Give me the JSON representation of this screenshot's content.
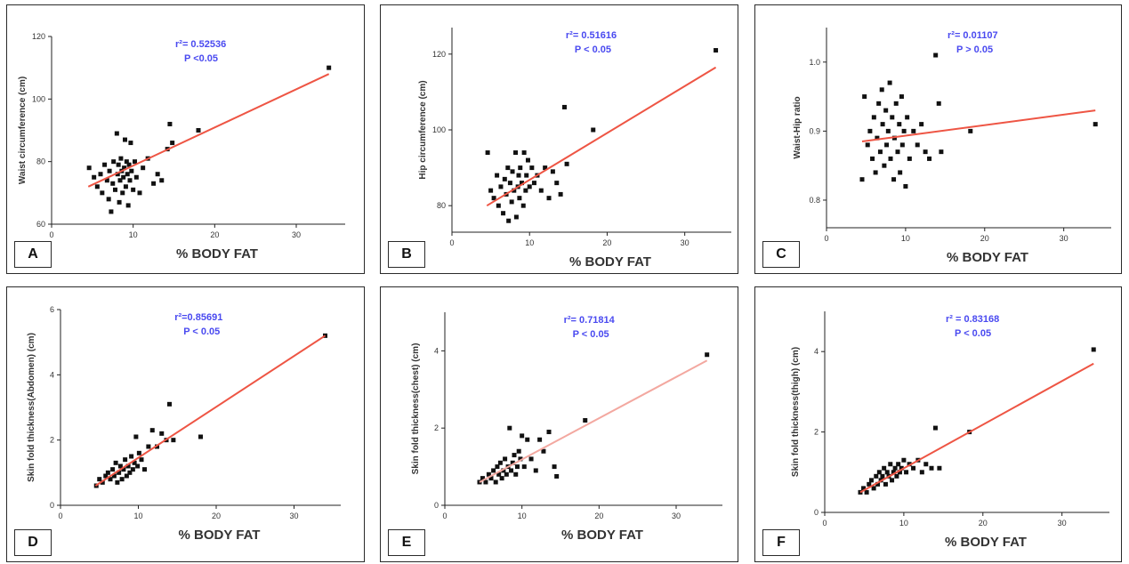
{
  "chart_data": [
    {
      "type": "scatter",
      "panel_label": "A",
      "xlabel": "% BODY FAT",
      "ylabel": "Waist circumference (cm)",
      "xlim": [
        0,
        36
      ],
      "ylim": [
        60,
        120
      ],
      "xticks": [
        "0",
        "10",
        "20",
        "30"
      ],
      "yticks": [
        "60",
        "80",
        "100",
        "120"
      ],
      "r2_label": "r²= 0.52536",
      "p_label": "P <0.05",
      "fit_line": {
        "x": [
          4.5,
          34
        ],
        "y": [
          72,
          108
        ]
      },
      "points": [
        [
          4.6,
          78
        ],
        [
          5.2,
          75
        ],
        [
          5.6,
          72
        ],
        [
          6.0,
          76
        ],
        [
          6.2,
          70
        ],
        [
          6.5,
          79
        ],
        [
          6.8,
          74
        ],
        [
          7.0,
          68
        ],
        [
          7.1,
          77
        ],
        [
          7.3,
          64
        ],
        [
          7.5,
          73
        ],
        [
          7.6,
          80
        ],
        [
          7.8,
          71
        ],
        [
          8.0,
          89
        ],
        [
          8.1,
          76
        ],
        [
          8.2,
          79
        ],
        [
          8.3,
          67
        ],
        [
          8.4,
          74
        ],
        [
          8.5,
          81
        ],
        [
          8.6,
          77
        ],
        [
          8.7,
          70
        ],
        [
          8.8,
          75
        ],
        [
          8.9,
          78
        ],
        [
          9.0,
          87
        ],
        [
          9.1,
          72
        ],
        [
          9.2,
          80
        ],
        [
          9.3,
          76
        ],
        [
          9.4,
          66
        ],
        [
          9.5,
          79
        ],
        [
          9.6,
          74
        ],
        [
          9.7,
          86
        ],
        [
          9.8,
          77
        ],
        [
          10.0,
          71
        ],
        [
          10.2,
          80
        ],
        [
          10.4,
          75
        ],
        [
          10.8,
          70
        ],
        [
          11.2,
          78
        ],
        [
          11.8,
          81
        ],
        [
          12.5,
          73
        ],
        [
          13.0,
          76
        ],
        [
          13.5,
          74
        ],
        [
          14.2,
          84
        ],
        [
          14.5,
          92
        ],
        [
          14.8,
          86
        ],
        [
          18.0,
          90
        ],
        [
          34.0,
          110
        ]
      ]
    },
    {
      "type": "scatter",
      "panel_label": "B",
      "xlabel": "% BODY FAT",
      "ylabel": "Hip circumference (cm)",
      "xlim": [
        0,
        36
      ],
      "ylim": [
        73,
        127
      ],
      "xticks": [
        "0",
        "10",
        "20",
        "30"
      ],
      "yticks": [
        "80",
        "100",
        "120"
      ],
      "r2_label": "r²= 0.51616",
      "p_label": "P < 0.05",
      "fit_line": {
        "x": [
          4.5,
          34
        ],
        "y": [
          80,
          116.5
        ]
      },
      "points": [
        [
          4.6,
          94
        ],
        [
          5.0,
          84
        ],
        [
          5.4,
          82
        ],
        [
          5.8,
          88
        ],
        [
          6.0,
          80
        ],
        [
          6.3,
          85
        ],
        [
          6.6,
          78
        ],
        [
          6.8,
          87
        ],
        [
          7.0,
          83
        ],
        [
          7.2,
          90
        ],
        [
          7.3,
          76
        ],
        [
          7.5,
          86
        ],
        [
          7.7,
          81
        ],
        [
          7.8,
          89
        ],
        [
          8.0,
          84
        ],
        [
          8.2,
          94
        ],
        [
          8.3,
          77
        ],
        [
          8.5,
          85
        ],
        [
          8.6,
          88
        ],
        [
          8.7,
          82
        ],
        [
          8.8,
          90
        ],
        [
          9.0,
          86
        ],
        [
          9.2,
          80
        ],
        [
          9.3,
          94
        ],
        [
          9.5,
          84
        ],
        [
          9.6,
          88
        ],
        [
          9.8,
          92
        ],
        [
          10.0,
          85
        ],
        [
          10.3,
          90
        ],
        [
          10.6,
          86
        ],
        [
          11.0,
          88
        ],
        [
          11.5,
          84
        ],
        [
          12.0,
          90
        ],
        [
          12.5,
          82
        ],
        [
          13.0,
          89
        ],
        [
          13.5,
          86
        ],
        [
          14.0,
          83
        ],
        [
          14.5,
          106
        ],
        [
          14.8,
          91
        ],
        [
          18.2,
          100
        ],
        [
          34.0,
          121
        ]
      ]
    },
    {
      "type": "scatter",
      "panel_label": "C",
      "xlabel": "% BODY FAT",
      "ylabel": "Waist-Hip ratio",
      "xlim": [
        0,
        36
      ],
      "ylim": [
        0.76,
        1.05
      ],
      "xticks": [
        "0",
        "10",
        "20",
        "30"
      ],
      "yticks": [
        "0.8",
        "0.9",
        "1.0"
      ],
      "r2_label": "r²= 0.01107",
      "p_label": "P > 0.05",
      "fit_line": {
        "x": [
          4.5,
          34
        ],
        "y": [
          0.885,
          0.93
        ]
      },
      "points": [
        [
          4.5,
          0.83
        ],
        [
          4.8,
          0.95
        ],
        [
          5.2,
          0.88
        ],
        [
          5.5,
          0.9
        ],
        [
          5.8,
          0.86
        ],
        [
          6.0,
          0.92
        ],
        [
          6.2,
          0.84
        ],
        [
          6.4,
          0.89
        ],
        [
          6.6,
          0.94
        ],
        [
          6.8,
          0.87
        ],
        [
          7.0,
          0.96
        ],
        [
          7.1,
          0.91
        ],
        [
          7.3,
          0.85
        ],
        [
          7.5,
          0.93
        ],
        [
          7.6,
          0.88
        ],
        [
          7.8,
          0.9
        ],
        [
          8.0,
          0.97
        ],
        [
          8.1,
          0.86
        ],
        [
          8.3,
          0.92
        ],
        [
          8.5,
          0.83
        ],
        [
          8.6,
          0.89
        ],
        [
          8.8,
          0.94
        ],
        [
          9.0,
          0.87
        ],
        [
          9.2,
          0.91
        ],
        [
          9.3,
          0.84
        ],
        [
          9.5,
          0.95
        ],
        [
          9.6,
          0.88
        ],
        [
          9.8,
          0.9
        ],
        [
          10.0,
          0.82
        ],
        [
          10.2,
          0.92
        ],
        [
          10.5,
          0.86
        ],
        [
          11.0,
          0.9
        ],
        [
          11.5,
          0.88
        ],
        [
          12.0,
          0.91
        ],
        [
          12.5,
          0.87
        ],
        [
          13.0,
          0.86
        ],
        [
          13.8,
          1.01
        ],
        [
          14.2,
          0.94
        ],
        [
          14.5,
          0.87
        ],
        [
          18.2,
          0.9
        ],
        [
          34.0,
          0.91
        ]
      ]
    },
    {
      "type": "scatter",
      "panel_label": "D",
      "xlabel": "% BODY FAT",
      "ylabel": "Skin fold thickness(Abdomen) (cm)",
      "xlim": [
        0,
        36
      ],
      "ylim": [
        0,
        6
      ],
      "xticks": [
        "0",
        "10",
        "20",
        "30"
      ],
      "yticks": [
        "0",
        "2",
        "4",
        "6"
      ],
      "r2_label": "r²=0.85691",
      "p_label": "P < 0.05",
      "fit_line": {
        "x": [
          4.5,
          34
        ],
        "y": [
          0.6,
          5.2
        ]
      },
      "points": [
        [
          4.6,
          0.6
        ],
        [
          5.0,
          0.8
        ],
        [
          5.4,
          0.7
        ],
        [
          5.8,
          0.9
        ],
        [
          6.1,
          1.0
        ],
        [
          6.4,
          0.8
        ],
        [
          6.7,
          1.1
        ],
        [
          6.9,
          0.9
        ],
        [
          7.1,
          1.3
        ],
        [
          7.3,
          0.7
        ],
        [
          7.5,
          1.0
        ],
        [
          7.7,
          1.2
        ],
        [
          7.9,
          0.8
        ],
        [
          8.1,
          1.1
        ],
        [
          8.3,
          1.4
        ],
        [
          8.5,
          0.9
        ],
        [
          8.7,
          1.2
        ],
        [
          8.9,
          1.0
        ],
        [
          9.1,
          1.5
        ],
        [
          9.3,
          1.1
        ],
        [
          9.5,
          1.3
        ],
        [
          9.7,
          2.1
        ],
        [
          9.9,
          1.2
        ],
        [
          10.1,
          1.6
        ],
        [
          10.4,
          1.4
        ],
        [
          10.8,
          1.1
        ],
        [
          11.3,
          1.8
        ],
        [
          11.8,
          2.3
        ],
        [
          12.4,
          1.8
        ],
        [
          13.0,
          2.2
        ],
        [
          13.6,
          2.0
        ],
        [
          14.0,
          3.1
        ],
        [
          14.5,
          2.0
        ],
        [
          18.0,
          2.1
        ],
        [
          34.0,
          5.2
        ]
      ]
    },
    {
      "type": "scatter",
      "panel_label": "E",
      "xlabel": "% BODY FAT",
      "ylabel": "Skin fold thickness(chest) (cm)",
      "xlim": [
        0,
        36
      ],
      "ylim": [
        0,
        5
      ],
      "xticks": [
        "0",
        "10",
        "20",
        "30"
      ],
      "yticks": [
        "0",
        "2",
        "4"
      ],
      "r2_label": "r²= 0.71814",
      "p_label": "P < 0.05",
      "fit_line": {
        "x": [
          4.5,
          34
        ],
        "y": [
          0.6,
          3.75
        ]
      },
      "points": [
        [
          4.5,
          0.6
        ],
        [
          4.9,
          0.7
        ],
        [
          5.3,
          0.6
        ],
        [
          5.7,
          0.8
        ],
        [
          6.0,
          0.7
        ],
        [
          6.3,
          0.9
        ],
        [
          6.6,
          0.6
        ],
        [
          6.8,
          1.0
        ],
        [
          7.0,
          0.8
        ],
        [
          7.2,
          1.1
        ],
        [
          7.4,
          0.7
        ],
        [
          7.6,
          0.9
        ],
        [
          7.8,
          1.2
        ],
        [
          8.0,
          0.8
        ],
        [
          8.2,
          1.0
        ],
        [
          8.4,
          2.0
        ],
        [
          8.6,
          0.9
        ],
        [
          8.8,
          1.1
        ],
        [
          9.0,
          1.3
        ],
        [
          9.2,
          0.8
        ],
        [
          9.4,
          1.0
        ],
        [
          9.6,
          1.4
        ],
        [
          9.8,
          1.2
        ],
        [
          10.0,
          1.8
        ],
        [
          10.3,
          1.0
        ],
        [
          10.7,
          1.7
        ],
        [
          11.2,
          1.2
        ],
        [
          11.8,
          0.9
        ],
        [
          12.3,
          1.7
        ],
        [
          12.8,
          1.4
        ],
        [
          13.5,
          1.9
        ],
        [
          14.2,
          1.0
        ],
        [
          14.5,
          0.75
        ],
        [
          18.2,
          2.2
        ],
        [
          34.0,
          3.9
        ]
      ]
    },
    {
      "type": "scatter",
      "panel_label": "F",
      "xlabel": "% BODY FAT",
      "ylabel": "Skin fold thickness(thigh) (cm)",
      "xlim": [
        0,
        36
      ],
      "ylim": [
        0,
        5
      ],
      "xticks": [
        "0",
        "10",
        "20",
        "30"
      ],
      "yticks": [
        "0",
        "2",
        "4"
      ],
      "r2_label": "r² = 0.83168",
      "p_label": "P < 0.05",
      "fit_line": {
        "x": [
          4.5,
          34
        ],
        "y": [
          0.5,
          3.7
        ]
      },
      "points": [
        [
          4.5,
          0.5
        ],
        [
          4.9,
          0.6
        ],
        [
          5.3,
          0.5
        ],
        [
          5.6,
          0.7
        ],
        [
          5.9,
          0.8
        ],
        [
          6.2,
          0.6
        ],
        [
          6.5,
          0.9
        ],
        [
          6.7,
          0.7
        ],
        [
          6.9,
          1.0
        ],
        [
          7.1,
          0.8
        ],
        [
          7.3,
          0.9
        ],
        [
          7.5,
          1.1
        ],
        [
          7.7,
          0.7
        ],
        [
          7.9,
          1.0
        ],
        [
          8.1,
          0.9
        ],
        [
          8.3,
          1.2
        ],
        [
          8.5,
          0.8
        ],
        [
          8.7,
          1.0
        ],
        [
          8.9,
          1.1
        ],
        [
          9.1,
          0.9
        ],
        [
          9.3,
          1.2
        ],
        [
          9.5,
          1.0
        ],
        [
          9.7,
          1.1
        ],
        [
          10.0,
          1.3
        ],
        [
          10.3,
          1.0
        ],
        [
          10.7,
          1.2
        ],
        [
          11.2,
          1.1
        ],
        [
          11.8,
          1.3
        ],
        [
          12.3,
          1.0
        ],
        [
          12.8,
          1.2
        ],
        [
          13.5,
          1.1
        ],
        [
          14.0,
          2.1
        ],
        [
          14.5,
          1.1
        ],
        [
          18.3,
          2.0
        ],
        [
          34.0,
          4.05
        ]
      ]
    }
  ]
}
